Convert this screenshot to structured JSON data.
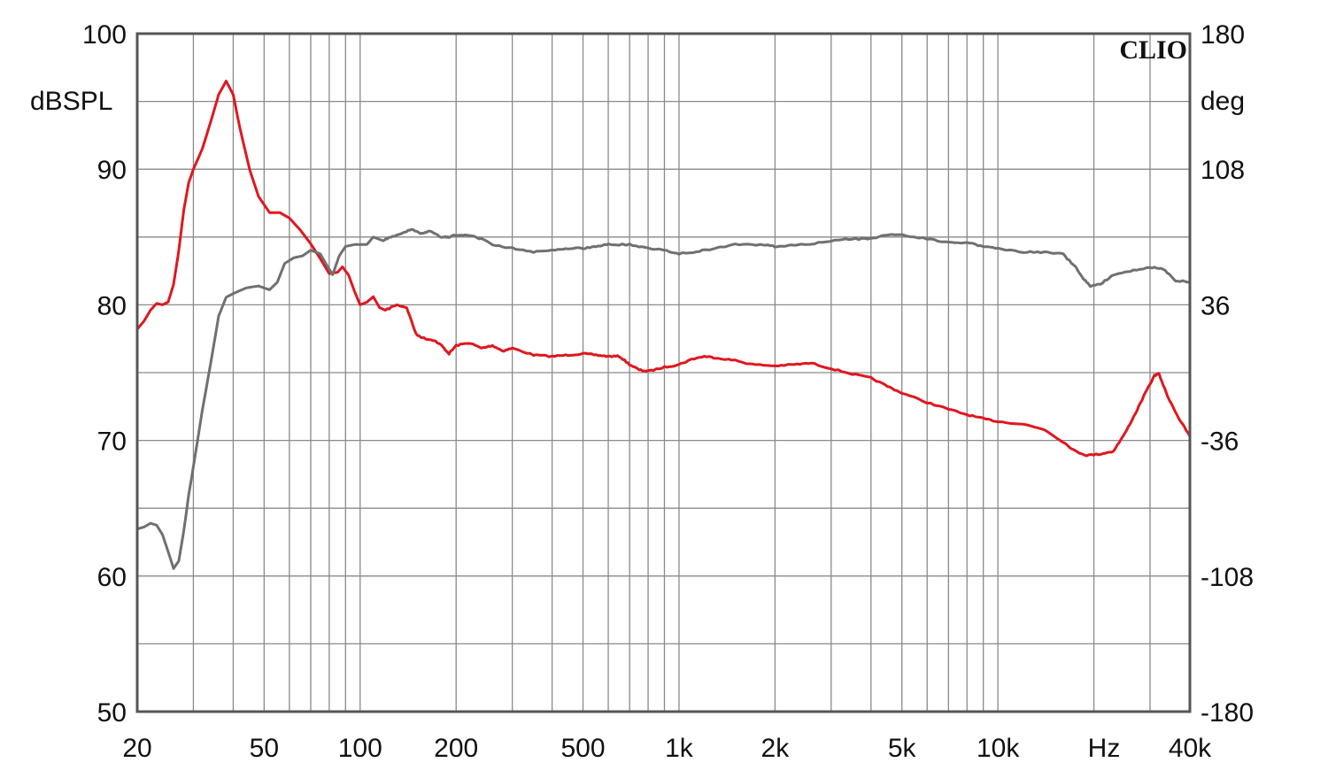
{
  "chart_data": {
    "type": "line",
    "brand": "CLIO",
    "x_scale": "log",
    "xlim": [
      20,
      40000
    ],
    "ylim_left": [
      50,
      100
    ],
    "ylim_right": [
      -180,
      180
    ],
    "left_unit": "dBSPL",
    "right_unit": "deg",
    "x_unit": "Hz",
    "grid": true,
    "x_ticks": [
      {
        "value": 20,
        "label": "20"
      },
      {
        "value": 50,
        "label": "50"
      },
      {
        "value": 100,
        "label": "100"
      },
      {
        "value": 200,
        "label": "200"
      },
      {
        "value": 500,
        "label": "500"
      },
      {
        "value": 1000,
        "label": "1k"
      },
      {
        "value": 2000,
        "label": "2k"
      },
      {
        "value": 5000,
        "label": "5k"
      },
      {
        "value": 10000,
        "label": "10k"
      },
      {
        "value": 40000,
        "label": "40k"
      }
    ],
    "left_ticks": [
      "100",
      "90",
      "80",
      "70",
      "60",
      "50"
    ],
    "right_ticks": [
      "180",
      "108",
      "36",
      "-36",
      "-108",
      "-180"
    ],
    "colors": {
      "magnitude": "#e0171f",
      "phase": "#707070",
      "grid": "#8a8a8a",
      "frame": "#555555"
    },
    "series": [
      {
        "axis": "left",
        "color": "#e0171f",
        "points": [
          [
            20,
            78.2
          ],
          [
            21,
            78.8
          ],
          [
            22,
            79.6
          ],
          [
            23,
            80.1
          ],
          [
            24,
            80.0
          ],
          [
            25,
            80.2
          ],
          [
            26,
            81.5
          ],
          [
            27,
            84.0
          ],
          [
            28,
            87.0
          ],
          [
            29,
            89.0
          ],
          [
            30,
            90.0
          ],
          [
            32,
            91.5
          ],
          [
            34,
            93.5
          ],
          [
            36,
            95.5
          ],
          [
            38,
            96.5
          ],
          [
            40,
            95.5
          ],
          [
            42,
            93.0
          ],
          [
            45,
            90.0
          ],
          [
            48,
            88.0
          ],
          [
            52,
            86.8
          ],
          [
            56,
            86.8
          ],
          [
            60,
            86.4
          ],
          [
            65,
            85.5
          ],
          [
            70,
            84.5
          ],
          [
            75,
            83.4
          ],
          [
            80,
            82.3
          ],
          [
            85,
            82.4
          ],
          [
            88,
            82.8
          ],
          [
            92,
            82.2
          ],
          [
            96,
            81.0
          ],
          [
            100,
            80.0
          ],
          [
            105,
            80.2
          ],
          [
            110,
            80.6
          ],
          [
            115,
            79.8
          ],
          [
            120,
            79.6
          ],
          [
            130,
            80.0
          ],
          [
            140,
            79.8
          ],
          [
            150,
            77.8
          ],
          [
            160,
            77.5
          ],
          [
            170,
            77.4
          ],
          [
            180,
            77.0
          ],
          [
            190,
            76.4
          ],
          [
            200,
            77.0
          ],
          [
            220,
            77.2
          ],
          [
            240,
            76.8
          ],
          [
            260,
            77.0
          ],
          [
            280,
            76.6
          ],
          [
            300,
            76.8
          ],
          [
            350,
            76.3
          ],
          [
            400,
            76.2
          ],
          [
            450,
            76.3
          ],
          [
            500,
            76.4
          ],
          [
            550,
            76.3
          ],
          [
            600,
            76.2
          ],
          [
            650,
            76.2
          ],
          [
            700,
            75.6
          ],
          [
            750,
            75.2
          ],
          [
            800,
            75.1
          ],
          [
            900,
            75.4
          ],
          [
            1000,
            75.6
          ],
          [
            1100,
            76.0
          ],
          [
            1200,
            76.2
          ],
          [
            1300,
            76.1
          ],
          [
            1500,
            75.9
          ],
          [
            1700,
            75.6
          ],
          [
            2000,
            75.5
          ],
          [
            2300,
            75.6
          ],
          [
            2600,
            75.7
          ],
          [
            3000,
            75.3
          ],
          [
            3500,
            74.9
          ],
          [
            4000,
            74.6
          ],
          [
            4500,
            74.0
          ],
          [
            5000,
            73.5
          ],
          [
            6000,
            72.8
          ],
          [
            7000,
            72.3
          ],
          [
            8000,
            71.9
          ],
          [
            9000,
            71.6
          ],
          [
            10000,
            71.4
          ],
          [
            12000,
            71.2
          ],
          [
            14000,
            70.8
          ],
          [
            16000,
            69.9
          ],
          [
            17500,
            69.2
          ],
          [
            19000,
            68.9
          ],
          [
            21000,
            69.0
          ],
          [
            23000,
            69.2
          ],
          [
            25000,
            70.5
          ],
          [
            27000,
            72.0
          ],
          [
            29000,
            73.5
          ],
          [
            31000,
            74.8
          ],
          [
            32000,
            74.9
          ],
          [
            34000,
            73.3
          ],
          [
            37000,
            71.6
          ],
          [
            40000,
            70.3
          ]
        ]
      },
      {
        "axis": "right",
        "color": "#707070",
        "points": [
          [
            20,
            -83
          ],
          [
            21,
            -82
          ],
          [
            22,
            -80
          ],
          [
            23,
            -81
          ],
          [
            24,
            -86
          ],
          [
            25,
            -95
          ],
          [
            26,
            -104
          ],
          [
            27,
            -100
          ],
          [
            28,
            -84
          ],
          [
            29,
            -65
          ],
          [
            30,
            -50
          ],
          [
            32,
            -20
          ],
          [
            34,
            5
          ],
          [
            36,
            30
          ],
          [
            38,
            40
          ],
          [
            40,
            42
          ],
          [
            44,
            45
          ],
          [
            48,
            46
          ],
          [
            52,
            44
          ],
          [
            55,
            48
          ],
          [
            58,
            58
          ],
          [
            62,
            61
          ],
          [
            66,
            62
          ],
          [
            70,
            65
          ],
          [
            75,
            63
          ],
          [
            78,
            58
          ],
          [
            82,
            52
          ],
          [
            86,
            62
          ],
          [
            90,
            67
          ],
          [
            96,
            68
          ],
          [
            100,
            68
          ],
          [
            105,
            68
          ],
          [
            110,
            72
          ],
          [
            118,
            70
          ],
          [
            125,
            72
          ],
          [
            135,
            74
          ],
          [
            145,
            76
          ],
          [
            155,
            74
          ],
          [
            165,
            75
          ],
          [
            180,
            72
          ],
          [
            190,
            72
          ],
          [
            200,
            73
          ],
          [
            220,
            73
          ],
          [
            240,
            71
          ],
          [
            260,
            68
          ],
          [
            300,
            66
          ],
          [
            350,
            64
          ],
          [
            400,
            65
          ],
          [
            450,
            66
          ],
          [
            500,
            66
          ],
          [
            550,
            67
          ],
          [
            600,
            68
          ],
          [
            700,
            68
          ],
          [
            800,
            66
          ],
          [
            900,
            65
          ],
          [
            1000,
            63
          ],
          [
            1100,
            64
          ],
          [
            1200,
            65
          ],
          [
            1500,
            68
          ],
          [
            1800,
            68
          ],
          [
            2000,
            67
          ],
          [
            2500,
            68
          ],
          [
            3000,
            70
          ],
          [
            3500,
            71
          ],
          [
            4000,
            71
          ],
          [
            4500,
            73
          ],
          [
            5000,
            73
          ],
          [
            6000,
            71
          ],
          [
            7000,
            69
          ],
          [
            8000,
            69
          ],
          [
            9000,
            67
          ],
          [
            10000,
            66
          ],
          [
            12000,
            64
          ],
          [
            14000,
            64
          ],
          [
            16000,
            63
          ],
          [
            17500,
            56
          ],
          [
            18500,
            50
          ],
          [
            19500,
            46
          ],
          [
            21000,
            47
          ],
          [
            23000,
            52
          ],
          [
            26000,
            54
          ],
          [
            30000,
            56
          ],
          [
            33000,
            55
          ],
          [
            36000,
            49
          ],
          [
            40000,
            48
          ]
        ]
      }
    ]
  }
}
